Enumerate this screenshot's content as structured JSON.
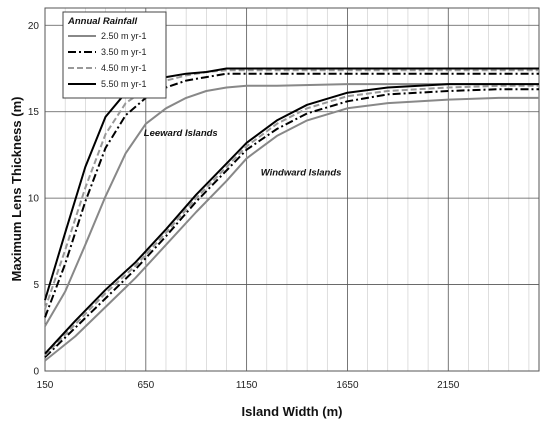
{
  "chart_data": {
    "type": "line",
    "xlabel": "Island Width (m)",
    "ylabel": "Maximum Lens Thickness (m)",
    "xlim": [
      150,
      2600
    ],
    "ylim": [
      0,
      21
    ],
    "xticks": [
      150,
      650,
      1150,
      1650,
      2150
    ],
    "yticks": [
      0,
      5,
      10,
      15,
      20
    ],
    "x_minor_step": 100,
    "grid": true,
    "legend": {
      "title": "Annual Rainfall",
      "placement": "top-left",
      "entries": [
        "2.50 m yr-1",
        "3.50 m yr-1",
        "4.50 m yr-1",
        "5.50 m yr-1"
      ]
    },
    "annotations": [
      {
        "text": "Leeward Islands",
        "x": 640,
        "y": 13.6
      },
      {
        "text": "Windward Islands",
        "x": 1220,
        "y": 11.3
      }
    ],
    "series": [
      {
        "name": "2.50 m yr-1",
        "group": "Leeward Islands",
        "color": "#888888",
        "dash": "solid",
        "x": [
          150,
          250,
          350,
          450,
          550,
          650,
          750,
          850,
          950,
          1050,
          1150,
          1300,
          1650,
          2150,
          2600
        ],
        "y": [
          2.6,
          4.6,
          7.3,
          10.1,
          12.6,
          14.3,
          15.2,
          15.8,
          16.2,
          16.4,
          16.5,
          16.5,
          16.6,
          16.6,
          16.6
        ]
      },
      {
        "name": "3.50 m yr-1",
        "group": "Leeward Islands",
        "color": "#000000",
        "dash": "dashdot",
        "x": [
          150,
          250,
          350,
          450,
          550,
          650,
          750,
          850,
          950,
          1050,
          1150,
          1300,
          1650,
          2150,
          2600
        ],
        "y": [
          3.1,
          6.2,
          9.8,
          12.9,
          14.8,
          15.8,
          16.4,
          16.8,
          17.0,
          17.2,
          17.2,
          17.2,
          17.2,
          17.2,
          17.2
        ]
      },
      {
        "name": "4.50 m yr-1",
        "group": "Leeward Islands",
        "color": "#999999",
        "dash": "dashed",
        "x": [
          150,
          250,
          350,
          450,
          550,
          650,
          750,
          850,
          950,
          1050,
          1150,
          1300,
          1650,
          2150,
          2600
        ],
        "y": [
          3.6,
          7.0,
          10.6,
          13.7,
          15.5,
          16.3,
          16.8,
          17.1,
          17.3,
          17.4,
          17.4,
          17.4,
          17.4,
          17.4,
          17.4
        ]
      },
      {
        "name": "5.50 m yr-1",
        "group": "Leeward Islands",
        "color": "#000000",
        "dash": "solid",
        "x": [
          150,
          250,
          350,
          450,
          550,
          650,
          750,
          850,
          950,
          1050,
          1150,
          1300,
          1650,
          2150,
          2600
        ],
        "y": [
          4.1,
          8.0,
          11.8,
          14.7,
          16.1,
          16.7,
          17.0,
          17.2,
          17.3,
          17.5,
          17.5,
          17.5,
          17.5,
          17.5,
          17.5
        ]
      },
      {
        "name": "2.50 m yr-1",
        "group": "Windward Islands",
        "color": "#888888",
        "dash": "solid",
        "x": [
          150,
          300,
          450,
          600,
          750,
          900,
          1050,
          1150,
          1300,
          1450,
          1650,
          1850,
          2150,
          2400,
          2600
        ],
        "y": [
          0.6,
          2.0,
          3.7,
          5.4,
          7.3,
          9.2,
          11.0,
          12.3,
          13.6,
          14.5,
          15.2,
          15.5,
          15.7,
          15.8,
          15.8
        ]
      },
      {
        "name": "3.50 m yr-1",
        "group": "Windward Islands",
        "color": "#000000",
        "dash": "dashdot",
        "x": [
          150,
          300,
          450,
          600,
          750,
          900,
          1050,
          1150,
          1300,
          1450,
          1650,
          1850,
          2150,
          2400,
          2600
        ],
        "y": [
          0.8,
          2.5,
          4.2,
          5.9,
          7.8,
          9.8,
          11.6,
          12.8,
          14.0,
          14.9,
          15.6,
          16.0,
          16.2,
          16.3,
          16.3
        ]
      },
      {
        "name": "4.50 m yr-1",
        "group": "Windward Islands",
        "color": "#999999",
        "dash": "dashed",
        "x": [
          150,
          300,
          450,
          600,
          750,
          900,
          1050,
          1150,
          1300,
          1450,
          1650,
          1850,
          2150,
          2400,
          2600
        ],
        "y": [
          0.9,
          2.7,
          4.5,
          6.1,
          8.0,
          10.0,
          11.8,
          13.0,
          14.3,
          15.2,
          15.9,
          16.2,
          16.4,
          16.5,
          16.5
        ]
      },
      {
        "name": "5.50 m yr-1",
        "group": "Windward Islands",
        "color": "#000000",
        "dash": "solid",
        "x": [
          150,
          300,
          450,
          600,
          750,
          900,
          1050,
          1150,
          1300,
          1450,
          1650,
          1850,
          2150,
          2400,
          2600
        ],
        "y": [
          1.0,
          2.9,
          4.7,
          6.3,
          8.2,
          10.2,
          12.0,
          13.2,
          14.5,
          15.4,
          16.1,
          16.4,
          16.6,
          16.6,
          16.6
        ]
      }
    ]
  }
}
